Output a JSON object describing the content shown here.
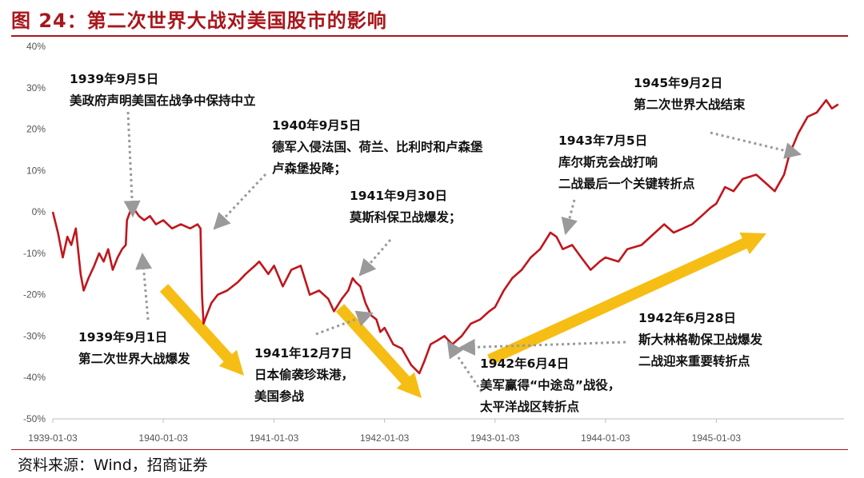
{
  "title": "图 24：第二次世界大战对美国股市的影响",
  "source": "资料来源：Wind，招商证券",
  "colors": {
    "line": "#c0161c",
    "arrow": "#f5b800",
    "title": "#a8161b",
    "leader": "#9a9a9a"
  },
  "chart_data": {
    "type": "line",
    "title": "图 24：第二次世界大战对美国股市的影响",
    "xlabel": "",
    "ylabel": "",
    "x_tick_labels": [
      "1939-01-03",
      "1940-01-03",
      "1941-01-03",
      "1942-01-03",
      "1943-01-03",
      "1944-01-03",
      "1945-01-03"
    ],
    "y_tick_labels": [
      "40%",
      "30%",
      "20%",
      "10%",
      "0%",
      "-10%",
      "-20%",
      "-30%",
      "-40%",
      "-50%"
    ],
    "ylim": [
      -50,
      40
    ],
    "grid": false,
    "legend": "none",
    "series": [
      {
        "unit": "%",
        "points": [
          [
            "1939-01-03",
            0
          ],
          [
            "1939-01-20",
            -5
          ],
          [
            "1939-02-05",
            -11
          ],
          [
            "1939-02-20",
            -6
          ],
          [
            "1939-03-05",
            -8
          ],
          [
            "1939-03-20",
            -4
          ],
          [
            "1939-04-05",
            -15
          ],
          [
            "1939-04-15",
            -19
          ],
          [
            "1939-05-01",
            -16
          ],
          [
            "1939-05-20",
            -13
          ],
          [
            "1939-06-05",
            -10
          ],
          [
            "1939-06-20",
            -12
          ],
          [
            "1939-07-05",
            -9
          ],
          [
            "1939-07-20",
            -14
          ],
          [
            "1939-08-05",
            -11
          ],
          [
            "1939-08-20",
            -9
          ],
          [
            "1939-09-01",
            -8
          ],
          [
            "1939-09-05",
            -2
          ],
          [
            "1939-09-15",
            0
          ],
          [
            "1939-09-25",
            1
          ],
          [
            "1939-10-15",
            -1
          ],
          [
            "1939-11-01",
            -2
          ],
          [
            "1939-11-20",
            -1
          ],
          [
            "1939-12-10",
            -3
          ],
          [
            "1940-01-03",
            -2
          ],
          [
            "1940-02-01",
            -4
          ],
          [
            "1940-03-01",
            -3
          ],
          [
            "1940-04-01",
            -4
          ],
          [
            "1940-04-25",
            -3
          ],
          [
            "1940-05-05",
            -4
          ],
          [
            "1940-05-10",
            -20
          ],
          [
            "1940-05-15",
            -27
          ],
          [
            "1940-05-25",
            -25
          ],
          [
            "1940-06-10",
            -22
          ],
          [
            "1940-07-01",
            -20
          ],
          [
            "1940-08-01",
            -19
          ],
          [
            "1940-09-05",
            -17
          ],
          [
            "1940-10-01",
            -15
          ],
          [
            "1940-11-01",
            -13
          ],
          [
            "1940-11-15",
            -12
          ],
          [
            "1940-12-15",
            -15
          ],
          [
            "1941-01-03",
            -13
          ],
          [
            "1941-02-01",
            -18
          ],
          [
            "1941-03-01",
            -14
          ],
          [
            "1941-04-01",
            -13
          ],
          [
            "1941-05-01",
            -20
          ],
          [
            "1941-06-01",
            -19
          ],
          [
            "1941-07-01",
            -21
          ],
          [
            "1941-07-20",
            -24
          ],
          [
            "1941-08-15",
            -21
          ],
          [
            "1941-09-05",
            -19
          ],
          [
            "1941-09-20",
            -16
          ],
          [
            "1941-09-30",
            -17
          ],
          [
            "1941-10-15",
            -18
          ],
          [
            "1941-11-01",
            -22
          ],
          [
            "1941-11-20",
            -25
          ],
          [
            "1941-12-07",
            -26
          ],
          [
            "1941-12-20",
            -29
          ],
          [
            "1942-01-03",
            -28
          ],
          [
            "1942-02-01",
            -32
          ],
          [
            "1942-03-01",
            -33
          ],
          [
            "1942-04-01",
            -37
          ],
          [
            "1942-04-28",
            -39
          ],
          [
            "1942-05-15",
            -36
          ],
          [
            "1942-06-04",
            -32
          ],
          [
            "1942-06-28",
            -31
          ],
          [
            "1942-07-20",
            -30
          ],
          [
            "1942-08-15",
            -32
          ],
          [
            "1942-09-15",
            -30
          ],
          [
            "1942-10-15",
            -27
          ],
          [
            "1942-11-15",
            -26
          ],
          [
            "1942-12-15",
            -24
          ],
          [
            "1943-01-03",
            -23
          ],
          [
            "1943-02-01",
            -19
          ],
          [
            "1943-03-01",
            -16
          ],
          [
            "1943-04-01",
            -14
          ],
          [
            "1943-05-01",
            -11
          ],
          [
            "1943-06-01",
            -9
          ],
          [
            "1943-07-05",
            -5
          ],
          [
            "1943-07-25",
            -6
          ],
          [
            "1943-08-15",
            -9
          ],
          [
            "1943-09-15",
            -8
          ],
          [
            "1943-10-15",
            -11
          ],
          [
            "1943-11-15",
            -14
          ],
          [
            "1943-12-15",
            -12
          ],
          [
            "1944-01-03",
            -11
          ],
          [
            "1944-02-15",
            -12
          ],
          [
            "1944-03-15",
            -9
          ],
          [
            "1944-05-01",
            -8
          ],
          [
            "1944-06-15",
            -5
          ],
          [
            "1944-07-15",
            -3
          ],
          [
            "1944-08-15",
            -5
          ],
          [
            "1944-09-15",
            -4
          ],
          [
            "1944-10-15",
            -3
          ],
          [
            "1944-11-15",
            -1
          ],
          [
            "1944-12-15",
            1
          ],
          [
            "1945-01-03",
            2
          ],
          [
            "1945-02-01",
            6
          ],
          [
            "1945-03-01",
            5
          ],
          [
            "1945-04-01",
            8
          ],
          [
            "1945-05-15",
            9
          ],
          [
            "1945-06-15",
            7
          ],
          [
            "1945-07-15",
            5
          ],
          [
            "1945-08-15",
            9
          ],
          [
            "1945-09-02",
            14
          ],
          [
            "1945-10-01",
            19
          ],
          [
            "1945-11-01",
            23
          ],
          [
            "1945-12-01",
            24
          ],
          [
            "1946-01-01",
            27
          ],
          [
            "1946-01-20",
            25
          ],
          [
            "1946-02-10",
            26
          ]
        ]
      }
    ],
    "annotations": [
      {
        "date": "1939年9月5日",
        "text": [
          "美政府声明美国在战争中保持中立"
        ]
      },
      {
        "date": "1940年9月5日",
        "text": [
          "德军入侵法国、荷兰、比利时和卢森堡",
          "卢森堡投降；"
        ]
      },
      {
        "date": "1941年9月30日",
        "text": [
          "莫斯科保卫战爆发；"
        ]
      },
      {
        "date": "1943年7月5日",
        "text": [
          "库尔斯克会战打响",
          "二战最后一个关键转折点"
        ]
      },
      {
        "date": "1945年9月2日",
        "text": [
          "第二次世界大战结束"
        ]
      },
      {
        "date": "1939年9月1日",
        "text": [
          "第二次世界大战爆发"
        ]
      },
      {
        "date": "1941年12月7日",
        "text": [
          "日本偷袭珍珠港，",
          "美国参战"
        ]
      },
      {
        "date": "1942年6月4日",
        "text": [
          "美军赢得“中途岛”战役，",
          "太平洋战区转折点"
        ]
      },
      {
        "date": "1942年6月28日",
        "text": [
          "斯大林格勒保卫战爆发",
          "二战迎来重要转折点"
        ]
      }
    ]
  }
}
